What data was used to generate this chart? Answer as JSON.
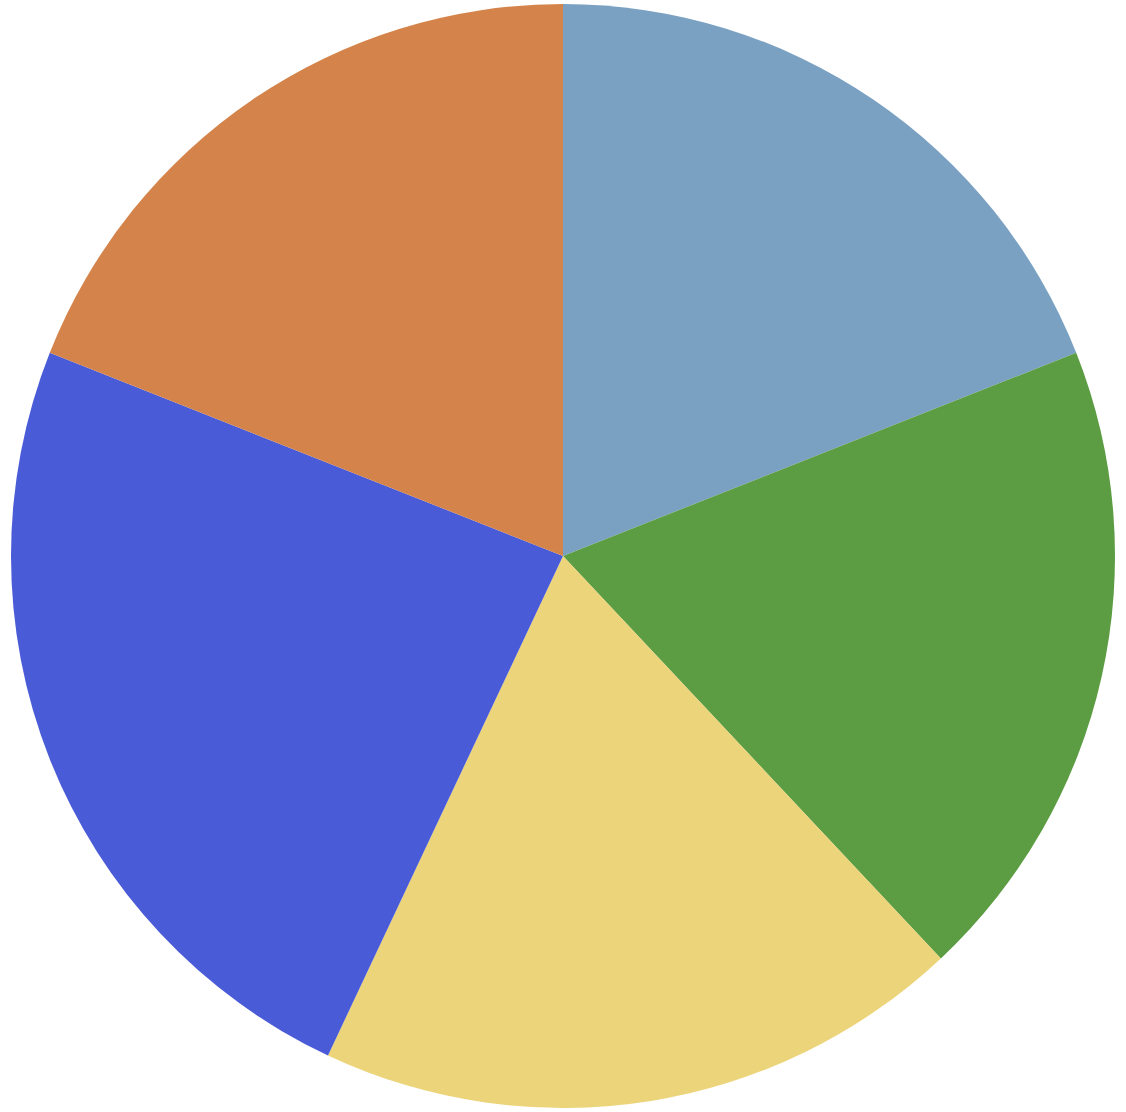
{
  "chart_data": {
    "type": "pie",
    "categories": [
      null,
      null,
      null,
      null,
      null
    ],
    "values": [
      19,
      19,
      19,
      24,
      19
    ],
    "colors": [
      "#7ba1c2",
      "#5c9c42",
      "#ecd47a",
      "#4a5bd8",
      "#d4844a"
    ],
    "legend": false
  }
}
